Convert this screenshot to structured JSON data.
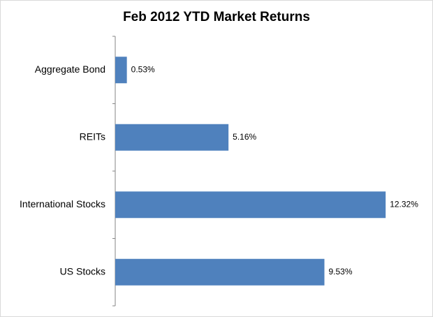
{
  "chart_data": {
    "type": "hbar",
    "title": "Feb 2012 YTD Market Returns",
    "categories": [
      "Aggregate Bond",
      "REITs",
      "International Stocks",
      "US Stocks"
    ],
    "values": [
      0.53,
      5.16,
      12.32,
      9.53
    ],
    "value_labels": [
      "0.53%",
      "5.16%",
      "12.32%",
      "9.53%"
    ],
    "color": "#4f81bd",
    "xlim": [
      0,
      14
    ]
  }
}
